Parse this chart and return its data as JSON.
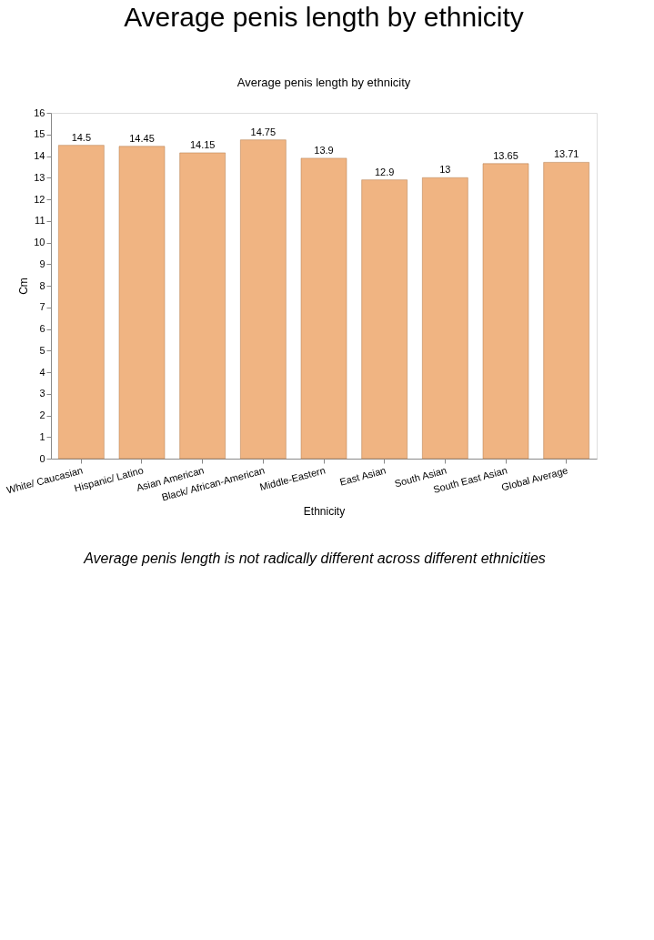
{
  "chart_data": {
    "type": "bar",
    "title": "Average penis length by ethnicity",
    "subtitle": "Average penis length by ethnicity",
    "xlabel": "Ethnicity",
    "ylabel": "Cm",
    "categories": [
      "White/ Caucasian",
      "Hispanic/ Latino",
      "Asian American",
      "Black/ African-American",
      "Middle-Eastern",
      "East Asian",
      "South Asian",
      "South East Asian",
      "Global Average"
    ],
    "values": [
      14.5,
      14.45,
      14.15,
      14.75,
      13.9,
      12.9,
      13,
      13.65,
      13.71
    ],
    "color": "#f0b482",
    "ylim": [
      0,
      16
    ],
    "yticks": [
      0,
      1,
      2,
      3,
      4,
      5,
      6,
      7,
      8,
      9,
      10,
      11,
      12,
      13,
      14,
      15,
      16
    ],
    "grid": false,
    "data_labels": true,
    "annotations": [
      "Average penis length is not radically different across different ethnicities"
    ]
  }
}
